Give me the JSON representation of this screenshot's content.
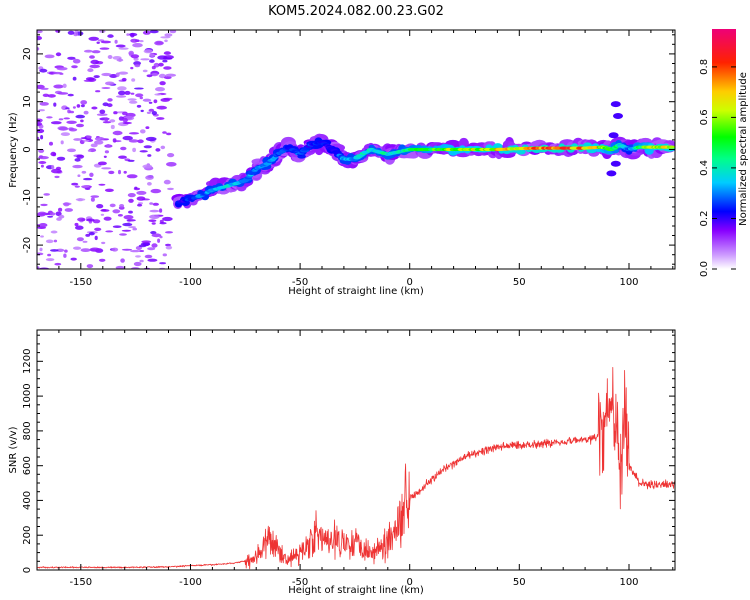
{
  "figure": {
    "title": "KOM5.2024.082.00.23.G02"
  },
  "chart_data": [
    {
      "type": "heatmap",
      "xlabel": "Height of straight line (km)",
      "ylabel": "Frequency (Hz)",
      "xlim": [
        -170,
        121
      ],
      "ylim": [
        -25,
        25
      ],
      "xticks": [
        -150,
        -100,
        -50,
        0,
        50,
        100
      ],
      "yticks": [
        -20,
        -10,
        0,
        10,
        20
      ],
      "grid": false,
      "colorbar": {
        "label": "Normalized spectral amplitude",
        "range": [
          0,
          0.95
        ],
        "ticks": [
          0.0,
          0.2,
          0.4,
          0.6,
          0.8
        ],
        "colormap": "rainbow (violet → blue → cyan → green → yellow → red → magenta)"
      },
      "ridge": [
        {
          "x": -105,
          "y": -11,
          "amp": 0.25
        },
        {
          "x": -97,
          "y": -10,
          "amp": 0.32
        },
        {
          "x": -90,
          "y": -8.5,
          "amp": 0.38
        },
        {
          "x": -82,
          "y": -7.5,
          "amp": 0.42
        },
        {
          "x": -75,
          "y": -6.5,
          "amp": 0.38
        },
        {
          "x": -70,
          "y": -4,
          "amp": 0.35
        },
        {
          "x": -65,
          "y": -3,
          "amp": 0.38
        },
        {
          "x": -60,
          "y": -1,
          "amp": 0.32
        },
        {
          "x": -55,
          "y": 0.5,
          "amp": 0.28
        },
        {
          "x": -50,
          "y": -1,
          "amp": 0.3
        },
        {
          "x": -45,
          "y": 1,
          "amp": 0.28
        },
        {
          "x": -40,
          "y": 1.5,
          "amp": 0.26
        },
        {
          "x": -35,
          "y": 0,
          "amp": 0.22
        },
        {
          "x": -30,
          "y": -2,
          "amp": 0.38
        },
        {
          "x": -25,
          "y": -2,
          "amp": 0.4
        },
        {
          "x": -18,
          "y": 0,
          "amp": 0.45
        },
        {
          "x": -10,
          "y": -1,
          "amp": 0.45
        },
        {
          "x": -5,
          "y": -0.5,
          "amp": 0.42
        },
        {
          "x": 0,
          "y": 0,
          "amp": 0.5
        },
        {
          "x": 10,
          "y": 0,
          "amp": 0.62
        },
        {
          "x": 20,
          "y": 0,
          "amp": 0.7
        },
        {
          "x": 30,
          "y": 0,
          "amp": 0.72
        },
        {
          "x": 40,
          "y": 0,
          "amp": 0.78
        },
        {
          "x": 50,
          "y": 0.2,
          "amp": 0.82
        },
        {
          "x": 60,
          "y": 0.3,
          "amp": 0.88
        },
        {
          "x": 70,
          "y": 0.3,
          "amp": 0.9
        },
        {
          "x": 80,
          "y": 0.3,
          "amp": 0.85
        },
        {
          "x": 88,
          "y": 0.5,
          "amp": 0.7
        },
        {
          "x": 92,
          "y": 0,
          "amp": 0.6
        },
        {
          "x": 96,
          "y": 1,
          "amp": 0.45
        },
        {
          "x": 100,
          "y": 0,
          "amp": 0.3
        },
        {
          "x": 105,
          "y": 0.5,
          "amp": 0.55
        },
        {
          "x": 112,
          "y": 0.5,
          "amp": 0.78
        },
        {
          "x": 120,
          "y": 0.5,
          "amp": 0.8
        }
      ]
    },
    {
      "type": "line",
      "xlabel": "Height of straight line (km)",
      "ylabel": "SNR (v/v)",
      "xlim": [
        -170,
        121
      ],
      "ylim": [
        0,
        1380
      ],
      "xticks": [
        -150,
        -100,
        -50,
        0,
        50,
        100
      ],
      "yticks": [
        0,
        200,
        400,
        600,
        800,
        1000,
        1200
      ],
      "grid": false,
      "series": [
        {
          "color": "#ee3333",
          "x": [
            -170,
            -150,
            -130,
            -110,
            -100,
            -90,
            -80,
            -72,
            -68,
            -64,
            -60,
            -56,
            -52,
            -48,
            -44,
            -40,
            -36,
            -32,
            -28,
            -24,
            -20,
            -16,
            -12,
            -8,
            -4,
            0,
            5,
            10,
            15,
            20,
            25,
            30,
            35,
            40,
            45,
            50,
            55,
            60,
            65,
            70,
            75,
            80,
            85,
            88,
            90,
            92,
            94,
            96,
            98,
            100,
            105,
            110,
            115,
            121
          ],
          "y": [
            15,
            15,
            15,
            18,
            25,
            30,
            40,
            60,
            110,
            170,
            120,
            60,
            80,
            120,
            210,
            180,
            150,
            190,
            150,
            170,
            120,
            100,
            150,
            200,
            330,
            420,
            460,
            520,
            570,
            610,
            650,
            670,
            690,
            705,
            715,
            720,
            720,
            730,
            730,
            740,
            745,
            750,
            760,
            800,
            900,
            1000,
            820,
            600,
            850,
            600,
            500,
            490,
            490,
            490
          ]
        }
      ]
    }
  ]
}
